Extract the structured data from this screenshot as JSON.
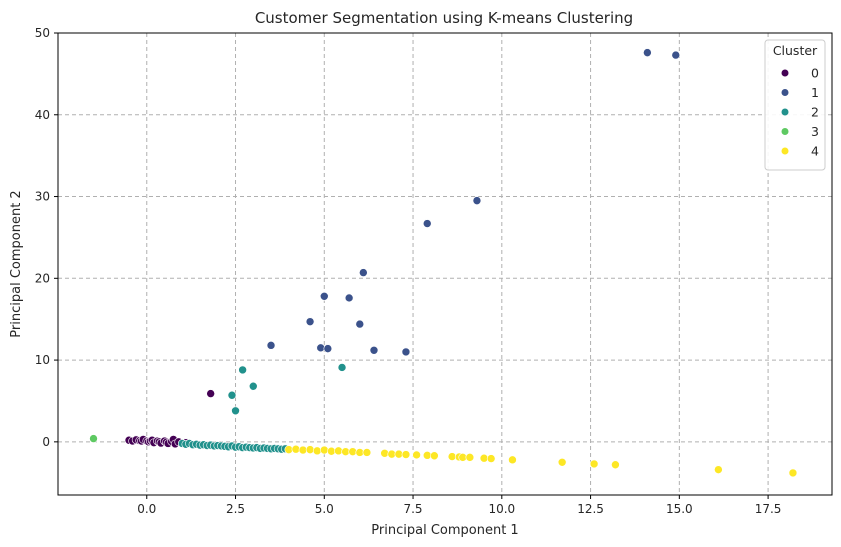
{
  "chart_data": {
    "type": "scatter",
    "title": "Customer Segmentation using K-means Clustering",
    "xlabel": "Principal Component 1",
    "ylabel": "Principal Component 2",
    "xlim": [
      -2.5,
      19.3
    ],
    "ylim": [
      -6.5,
      50
    ],
    "xticks": [
      0,
      2.5,
      5,
      7.5,
      10,
      12.5,
      15,
      17.5
    ],
    "xtick_labels": [
      "0.0",
      "2.5",
      "5.0",
      "7.5",
      "10.0",
      "12.5",
      "15.0",
      "17.5"
    ],
    "yticks": [
      0,
      10,
      20,
      30,
      40,
      50
    ],
    "ytick_labels": [
      "0",
      "10",
      "20",
      "30",
      "40",
      "50"
    ],
    "grid": true,
    "legend_title": "Cluster",
    "legend_position": "top-right",
    "series": [
      {
        "name": "0",
        "color": "#440154",
        "points": [
          [
            -0.5,
            0.2
          ],
          [
            -0.4,
            0.1
          ],
          [
            -0.3,
            0.25
          ],
          [
            -0.2,
            0.15
          ],
          [
            -0.15,
            0.1
          ],
          [
            -0.1,
            0.3
          ],
          [
            0.0,
            0.1
          ],
          [
            0.05,
            0.0
          ],
          [
            0.1,
            0.1
          ],
          [
            0.15,
            0.2
          ],
          [
            0.2,
            -0.1
          ],
          [
            0.3,
            0.1
          ],
          [
            0.35,
            0.0
          ],
          [
            0.4,
            -0.15
          ],
          [
            0.5,
            0.1
          ],
          [
            0.55,
            -0.05
          ],
          [
            0.6,
            -0.2
          ],
          [
            0.7,
            0.05
          ],
          [
            0.75,
            0.3
          ],
          [
            0.8,
            -0.25
          ],
          [
            0.9,
            0.0
          ],
          [
            1.0,
            -0.2
          ],
          [
            1.1,
            -0.1
          ],
          [
            1.8,
            5.9
          ]
        ]
      },
      {
        "name": "1",
        "color": "#3b528b",
        "points": [
          [
            14.1,
            47.6
          ],
          [
            14.9,
            47.3
          ],
          [
            9.3,
            29.5
          ],
          [
            7.9,
            26.7
          ],
          [
            6.1,
            20.7
          ],
          [
            5.0,
            17.8
          ],
          [
            5.7,
            17.6
          ],
          [
            4.6,
            14.7
          ],
          [
            6.0,
            14.4
          ],
          [
            3.5,
            11.8
          ],
          [
            4.9,
            11.5
          ],
          [
            5.1,
            11.4
          ],
          [
            6.4,
            11.2
          ],
          [
            7.3,
            11.0
          ]
        ]
      },
      {
        "name": "2",
        "color": "#21918c",
        "points": [
          [
            2.7,
            8.8
          ],
          [
            3.0,
            6.8
          ],
          [
            2.4,
            5.7
          ],
          [
            2.5,
            3.8
          ],
          [
            5.5,
            9.1
          ],
          [
            1.0,
            -0.2
          ],
          [
            1.1,
            -0.3
          ],
          [
            1.2,
            -0.2
          ],
          [
            1.3,
            -0.35
          ],
          [
            1.4,
            -0.3
          ],
          [
            1.5,
            -0.4
          ],
          [
            1.6,
            -0.35
          ],
          [
            1.7,
            -0.45
          ],
          [
            1.8,
            -0.4
          ],
          [
            1.9,
            -0.5
          ],
          [
            2.0,
            -0.45
          ],
          [
            2.1,
            -0.5
          ],
          [
            2.2,
            -0.55
          ],
          [
            2.3,
            -0.6
          ],
          [
            2.4,
            -0.5
          ],
          [
            2.5,
            -0.65
          ],
          [
            2.6,
            -0.6
          ],
          [
            2.7,
            -0.7
          ],
          [
            2.8,
            -0.65
          ],
          [
            2.9,
            -0.7
          ],
          [
            3.0,
            -0.75
          ],
          [
            3.1,
            -0.7
          ],
          [
            3.2,
            -0.8
          ],
          [
            3.3,
            -0.75
          ],
          [
            3.4,
            -0.8
          ],
          [
            3.5,
            -0.85
          ],
          [
            3.6,
            -0.8
          ],
          [
            3.7,
            -0.85
          ],
          [
            3.8,
            -0.9
          ],
          [
            3.9,
            -0.85
          ]
        ]
      },
      {
        "name": "3",
        "color": "#5ec962",
        "points": [
          [
            -1.5,
            0.4
          ]
        ]
      },
      {
        "name": "4",
        "color": "#fde725",
        "points": [
          [
            4.0,
            -0.95
          ],
          [
            4.2,
            -0.9
          ],
          [
            4.4,
            -1.0
          ],
          [
            4.6,
            -0.95
          ],
          [
            4.8,
            -1.1
          ],
          [
            5.0,
            -1.0
          ],
          [
            5.2,
            -1.15
          ],
          [
            5.4,
            -1.1
          ],
          [
            5.6,
            -1.2
          ],
          [
            5.8,
            -1.2
          ],
          [
            6.0,
            -1.3
          ],
          [
            6.2,
            -1.3
          ],
          [
            6.7,
            -1.4
          ],
          [
            6.9,
            -1.5
          ],
          [
            7.1,
            -1.5
          ],
          [
            7.3,
            -1.55
          ],
          [
            7.6,
            -1.6
          ],
          [
            7.9,
            -1.65
          ],
          [
            8.1,
            -1.7
          ],
          [
            8.6,
            -1.8
          ],
          [
            8.8,
            -1.85
          ],
          [
            8.9,
            -1.9
          ],
          [
            9.1,
            -1.9
          ],
          [
            9.5,
            -2.0
          ],
          [
            9.7,
            -2.05
          ],
          [
            10.3,
            -2.2
          ],
          [
            11.7,
            -2.5
          ],
          [
            12.6,
            -2.7
          ],
          [
            13.2,
            -2.8
          ],
          [
            16.1,
            -3.4
          ],
          [
            18.2,
            -3.8
          ]
        ]
      }
    ]
  }
}
